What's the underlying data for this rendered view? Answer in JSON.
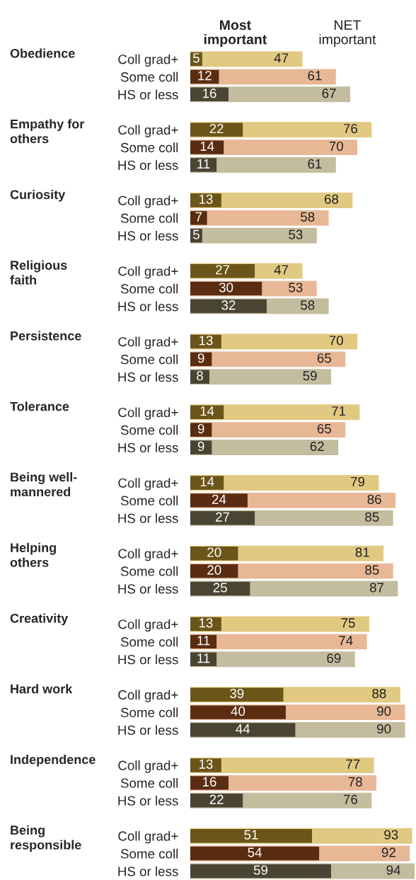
{
  "chart_data": {
    "type": "bar",
    "orientation": "horizontal",
    "tick_labels": "y",
    "data_labels": true,
    "categories": [
      "Coll grad+",
      "Some coll",
      "HS or less",
      null,
      "Coll grad+",
      "Some coll",
      "HS or less",
      null,
      "Coll grad+",
      "Some coll",
      "HS or less",
      null,
      "Coll grad+",
      "Some coll",
      "HS or less",
      null,
      "Coll grad+",
      "Some coll",
      "HS or less",
      null,
      "Coll grad+",
      "Some coll",
      "HS or less",
      null,
      "Coll grad+",
      "Some coll",
      "HS or less",
      null,
      "Coll grad+",
      "Some coll",
      "HS or less",
      null,
      "Coll grad+",
      "Some coll",
      "HS or less",
      null,
      "Coll grad+",
      "Some coll",
      "HS or less",
      null,
      "Coll grad+",
      "Some coll",
      "HS or less",
      null,
      "Coll grad+",
      "Some coll",
      "HS or less"
    ],
    "annotations": [
      "Obedience",
      "Empathy for others",
      "Curiosity",
      "Religious faith",
      "Persistence",
      "Tolerance",
      "Being well-mannered",
      "Helping others",
      "Creativity",
      "Hard work",
      "Independence",
      "Being responsible"
    ],
    "series": [
      {
        "name": "NET important",
        "colors": [
          "#e2c982",
          "#e8b896",
          "#c3bc9e",
          null,
          "#e2c982",
          "#e8b896",
          "#c3bc9e",
          null,
          "#e2c982",
          "#e8b896",
          "#c3bc9e",
          null,
          "#e2c982",
          "#e8b896",
          "#c3bc9e",
          null,
          "#e2c982",
          "#e8b896",
          "#c3bc9e",
          null,
          "#e2c982",
          "#e8b896",
          "#c3bc9e",
          null,
          "#e2c982",
          "#e8b896",
          "#c3bc9e",
          null,
          "#e2c982",
          "#e8b896",
          "#c3bc9e",
          null,
          "#e2c982",
          "#e8b896",
          "#c3bc9e",
          null,
          "#e2c982",
          "#e8b896",
          "#c3bc9e",
          null,
          "#e2c982",
          "#e8b896",
          "#c3bc9e",
          null,
          "#e2c982",
          "#e8b896",
          "#c3bc9e"
        ],
        "values": [
          47,
          61,
          67,
          null,
          76,
          70,
          61,
          null,
          68,
          58,
          53,
          null,
          47,
          53,
          58,
          null,
          70,
          65,
          59,
          null,
          71,
          65,
          62,
          null,
          79,
          86,
          85,
          null,
          81,
          85,
          87,
          null,
          75,
          74,
          69,
          null,
          88,
          90,
          90,
          null,
          77,
          78,
          76,
          null,
          93,
          92,
          94
        ]
      },
      {
        "name": "Most important",
        "colors": [
          "#6b5519",
          "#5a2d12",
          "#4a4433",
          null,
          "#6b5519",
          "#5a2d12",
          "#4a4433",
          null,
          "#6b5519",
          "#5a2d12",
          "#4a4433",
          null,
          "#6b5519",
          "#5a2d12",
          "#4a4433",
          null,
          "#6b5519",
          "#5a2d12",
          "#4a4433",
          null,
          "#6b5519",
          "#5a2d12",
          "#4a4433",
          null,
          "#6b5519",
          "#5a2d12",
          "#4a4433",
          null,
          "#6b5519",
          "#5a2d12",
          "#4a4433",
          null,
          "#6b5519",
          "#5a2d12",
          "#4a4433",
          null,
          "#6b5519",
          "#5a2d12",
          "#4a4433",
          null,
          "#6b5519",
          "#5a2d12",
          "#4a4433",
          null,
          "#6b5519",
          "#5a2d12",
          "#4a4433"
        ],
        "values": [
          5,
          12,
          16,
          null,
          22,
          14,
          11,
          null,
          13,
          7,
          5,
          null,
          27,
          30,
          32,
          null,
          13,
          9,
          8,
          null,
          14,
          9,
          9,
          null,
          14,
          24,
          27,
          null,
          20,
          20,
          25,
          null,
          13,
          11,
          11,
          null,
          39,
          40,
          44,
          null,
          13,
          16,
          22,
          null,
          51,
          54,
          59
        ]
      }
    ]
  }
}
